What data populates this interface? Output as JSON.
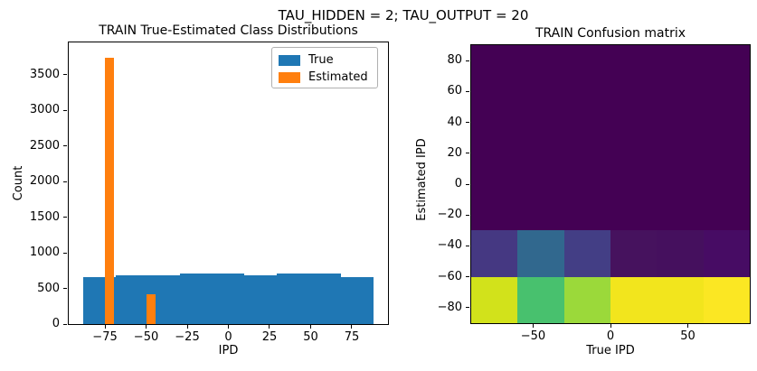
{
  "suptitle": "TAU_HIDDEN = 2; TAU_OUTPUT = 20",
  "chart_data": [
    {
      "type": "bar",
      "title": "TRAIN True-Estimated Class Distributions",
      "xlabel": "IPD",
      "ylabel": "Count",
      "xlim": [
        -97,
        97
      ],
      "ylim": [
        0,
        3950
      ],
      "grid": false,
      "xticks": {
        "values": [
          -75,
          -50,
          -25,
          0,
          25,
          50,
          75
        ],
        "labels": [
          "−75",
          "−50",
          "−25",
          "0",
          "25",
          "50",
          "75"
        ]
      },
      "yticks": {
        "values": [
          0,
          500,
          1000,
          1500,
          2000,
          2500,
          3000,
          3500
        ],
        "labels": [
          "0",
          "500",
          "1000",
          "1500",
          "2000",
          "2500",
          "3000",
          "3500"
        ]
      },
      "legend": {
        "position": "upper right",
        "entries": [
          {
            "label": "True",
            "color": "#1f77b4"
          },
          {
            "label": "Estimated",
            "color": "#ff7f0e"
          }
        ]
      },
      "series": [
        {
          "name": "True",
          "color": "#1f77b4",
          "bars": [
            [
              -88.0,
              -68.4,
              655
            ],
            [
              -68.4,
              -48.9,
              690
            ],
            [
              -48.9,
              -29.3,
              690
            ],
            [
              -29.3,
              -9.8,
              710
            ],
            [
              -9.8,
              9.8,
              705
            ],
            [
              9.8,
              29.3,
              680
            ],
            [
              29.3,
              48.9,
              710
            ],
            [
              48.9,
              68.4,
              710
            ],
            [
              68.4,
              88.0,
              655
            ]
          ]
        },
        {
          "name": "Estimated",
          "color": "#ff7f0e",
          "bars": [
            [
              -75.0,
              -69.4,
              3740
            ],
            [
              -50.0,
              -44.4,
              420
            ]
          ]
        }
      ]
    },
    {
      "type": "heatmap",
      "title": "TRAIN Confusion matrix",
      "xlabel": "True IPD",
      "ylabel": "Estimated IPD",
      "xlim": [
        -90,
        90
      ],
      "ylim": [
        -90,
        90
      ],
      "colormap": "viridis",
      "xticks": {
        "values": [
          -50,
          0,
          50
        ],
        "labels": [
          "−50",
          "0",
          "50"
        ]
      },
      "yticks": {
        "values": [
          80,
          60,
          40,
          20,
          0,
          -20,
          -40,
          -60,
          -80
        ],
        "labels": [
          "80",
          "60",
          "40",
          "20",
          "0",
          "−20",
          "−40",
          "−60",
          "−80"
        ]
      },
      "col_edges": [
        -90,
        -60,
        -30,
        0,
        30,
        60,
        90
      ],
      "row_edges": [
        90,
        60,
        30,
        0,
        -30,
        -60,
        -90
      ],
      "cell_colors": [
        [
          "#440154",
          "#440154",
          "#440154",
          "#440154",
          "#440154",
          "#440154"
        ],
        [
          "#440154",
          "#440154",
          "#440154",
          "#440154",
          "#440154",
          "#440154"
        ],
        [
          "#440154",
          "#440154",
          "#440154",
          "#440154",
          "#440154",
          "#440154"
        ],
        [
          "#440154",
          "#440154",
          "#440154",
          "#440154",
          "#440154",
          "#440154"
        ],
        [
          "#453882",
          "#31688e",
          "#433e85",
          "#46125e",
          "#45105e",
          "#470c64"
        ],
        [
          "#d2e21b",
          "#48c16e",
          "#9bd93a",
          "#f2e51d",
          "#f2e51d",
          "#fbe723"
        ]
      ],
      "values_norm": [
        [
          0.0,
          0.0,
          0.0,
          0.0,
          0.0,
          0.0
        ],
        [
          0.0,
          0.0,
          0.0,
          0.0,
          0.0,
          0.0
        ],
        [
          0.0,
          0.0,
          0.0,
          0.0,
          0.0,
          0.0
        ],
        [
          0.0,
          0.0,
          0.0,
          0.0,
          0.0,
          0.0
        ],
        [
          0.23,
          0.4,
          0.26,
          0.07,
          0.06,
          0.05
        ],
        [
          0.87,
          0.66,
          0.77,
          0.96,
          0.96,
          1.0
        ]
      ]
    }
  ]
}
